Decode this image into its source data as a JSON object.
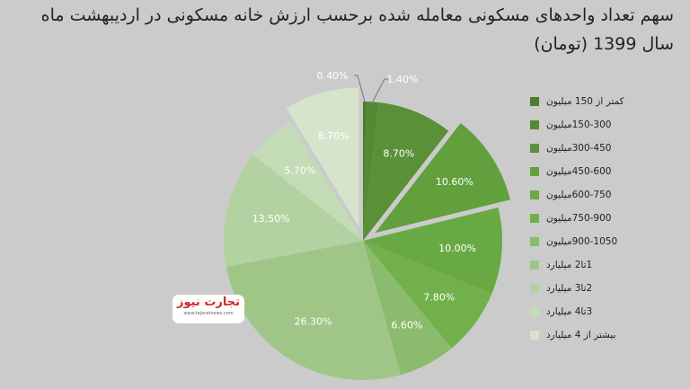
{
  "title": {
    "line1": "سهم تعداد واحدهای مسکونی معامله شده برحسب ارزش خانه مسکونی در اردیبهشت ماه",
    "line2": "سال 1399 (تومان)"
  },
  "logo": {
    "name": "تجارت نیوز",
    "url": "www.tejaratnews.com"
  },
  "chart_data": {
    "type": "pie",
    "title": "سهم تعداد واحدهای مسکونی معامله شده برحسب ارزش خانه مسکونی در اردیبهشت ماه سال 1399 (تومان)",
    "legend_position": "right",
    "categories": [
      "کمتر از 150 میلیون",
      "150-300میلیون",
      "300-450میلیون",
      "450-600میلیون",
      "600-750میلیون",
      "750-900میلیون",
      "900-1050میلیون",
      "1تا2 میلیارد",
      "2تا3 میلیارد",
      "3تا4 میلیارد",
      "بیشتر از 4 میلیارد"
    ],
    "values": [
      0.4,
      1.4,
      8.7,
      10.6,
      10.0,
      7.8,
      6.6,
      26.3,
      13.5,
      5.7,
      8.7
    ],
    "labels": [
      "0.40%",
      "1.40%",
      "8.70%",
      "10.60%",
      "10.00%",
      "7.80%",
      "6.60%",
      "26.30%",
      "13.50%",
      "5.70%",
      "8.70%"
    ],
    "exploded": [
      false,
      false,
      false,
      true,
      false,
      false,
      false,
      false,
      false,
      false,
      true
    ],
    "colors": [
      "#4c7d2d",
      "#548a33",
      "#5a9037",
      "#62a03e",
      "#69a944",
      "#72b04b",
      "#8bbb6d",
      "#9fc687",
      "#b3d2a1",
      "#c4dcb6",
      "#d6e4cc"
    ]
  }
}
